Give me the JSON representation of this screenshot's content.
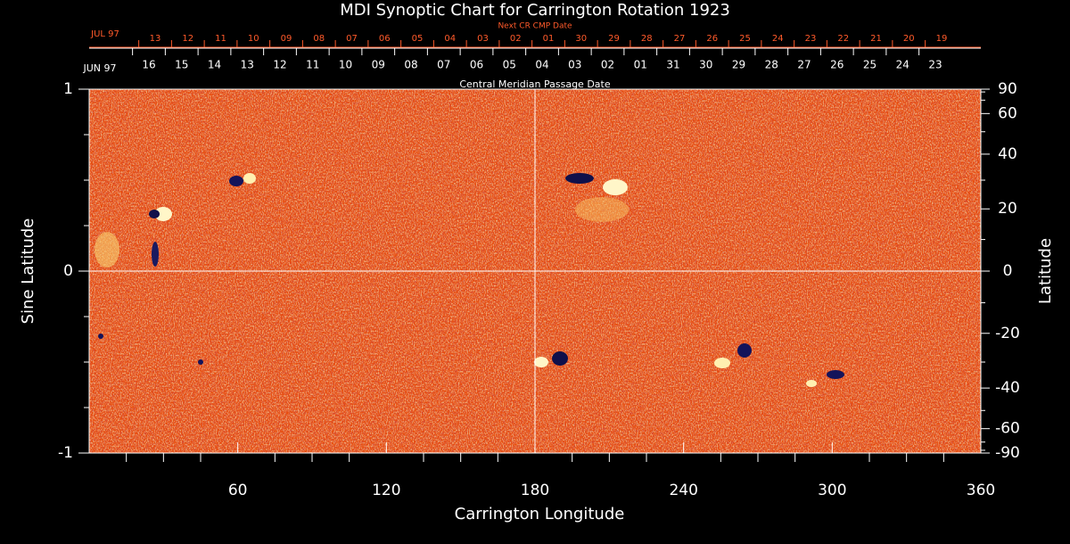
{
  "chart_data": {
    "type": "synoptic-map",
    "title": "MDI Synoptic Chart for Carrington Rotation 1923",
    "xlabel": "Carrington Longitude",
    "ylabel": "Sine Latitude",
    "y2label": "Latitude",
    "xlim": [
      0,
      360
    ],
    "xticks": [
      60,
      120,
      180,
      240,
      300,
      360
    ],
    "xminorticks": [
      15,
      30,
      45,
      75,
      90,
      105,
      135,
      150,
      165,
      195,
      210,
      225,
      255,
      270,
      285,
      315,
      330,
      345
    ],
    "ylim": [
      -1,
      1
    ],
    "yticks": [
      -1,
      0,
      1
    ],
    "yminorticks": [
      -0.75,
      -0.5,
      -0.25,
      0.25,
      0.5,
      0.75
    ],
    "y2scale": "sine",
    "y2lim": [
      -90,
      90
    ],
    "y2ticks": [
      90,
      60,
      40,
      20,
      0,
      -20,
      -40,
      -60,
      -90
    ],
    "y2minorticks": [
      -80,
      -70,
      -50,
      -30,
      -10,
      10,
      30,
      50,
      70,
      80
    ],
    "top_axis_label": "Central Meridian Passage Date",
    "cmp_month": "JUN 97",
    "cmp_dates": [
      "16",
      "15",
      "14",
      "13",
      "12",
      "11",
      "10",
      "09",
      "08",
      "07",
      "06",
      "05",
      "04",
      "03",
      "02",
      "01",
      "31",
      "30",
      "29",
      "28",
      "27",
      "26",
      "25",
      "24",
      "23"
    ],
    "next_label": "Next CR CMP Date",
    "next_month": "JUL 97",
    "next_dates": [
      "13",
      "12",
      "11",
      "10",
      "09",
      "08",
      "07",
      "06",
      "05",
      "04",
      "03",
      "02",
      "01",
      "30",
      "29",
      "28",
      "27",
      "26",
      "25",
      "24",
      "23",
      "22",
      "21",
      "20",
      "19"
    ],
    "colors": {
      "axis": "#ffffff",
      "next_axis": "#ff5a2a",
      "map": "#e8500f"
    }
  }
}
